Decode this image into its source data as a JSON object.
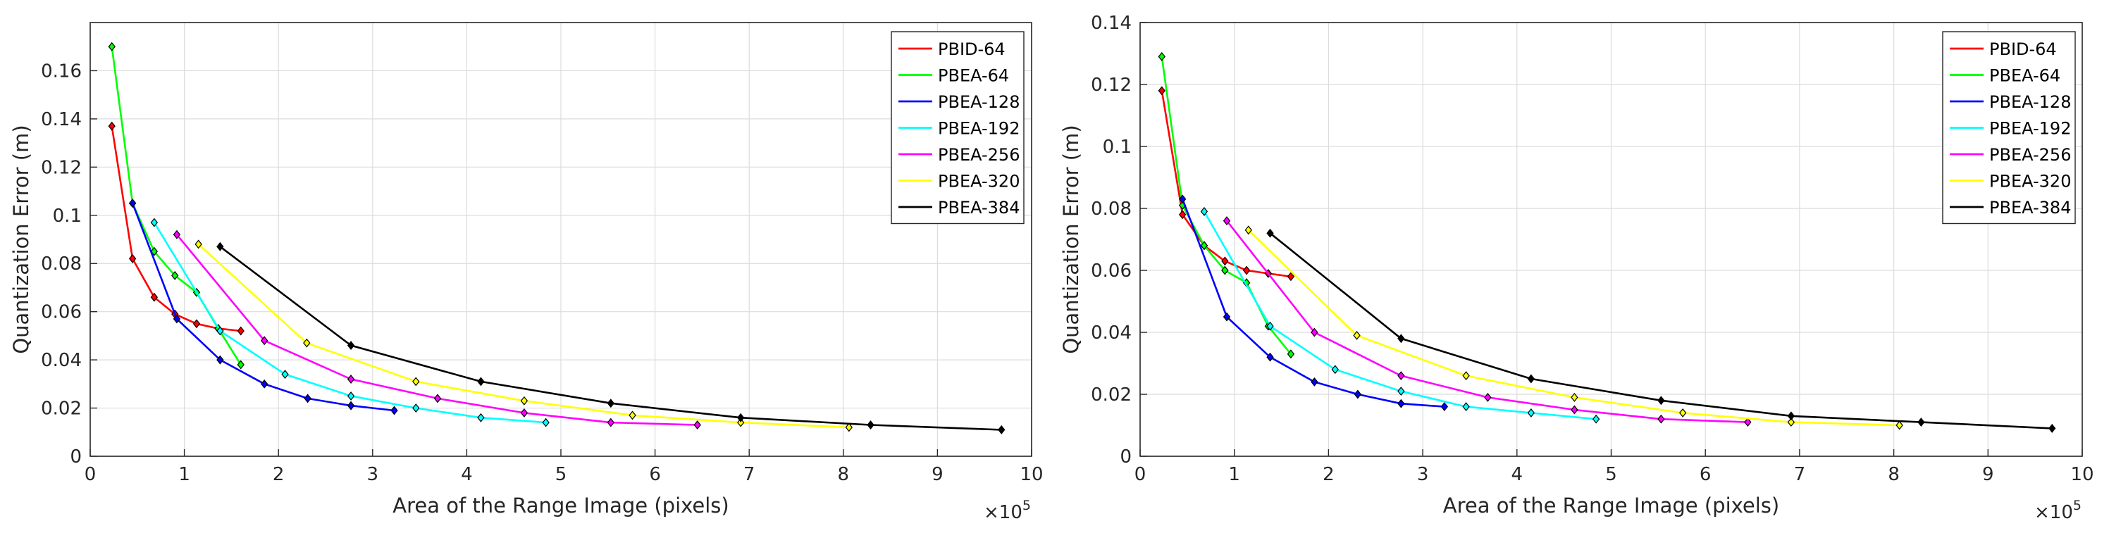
{
  "chart_data": [
    {
      "type": "line",
      "title": "",
      "xlabel": "Area of the Range Image  (pixels)",
      "ylabel": "Quantization Error  (m)",
      "x_multiplier_base": "×10",
      "x_multiplier_exp": "5",
      "xlim": [
        0,
        10
      ],
      "ylim": [
        0,
        0.18
      ],
      "xticks": [
        "0",
        "1",
        "2",
        "3",
        "4",
        "5",
        "6",
        "7",
        "8",
        "9",
        "10"
      ],
      "yticks": [
        "0",
        "0.02",
        "0.04",
        "0.06",
        "0.08",
        "0.1",
        "0.12",
        "0.14",
        "0.16"
      ],
      "grid": true,
      "legend_position": "top-right",
      "series": [
        {
          "name": "PBID-64",
          "color": "#ff0000",
          "x": [
            0.23,
            0.45,
            0.68,
            0.9,
            1.13,
            1.36,
            1.6
          ],
          "y": [
            0.137,
            0.082,
            0.066,
            0.059,
            0.055,
            0.053,
            0.052
          ]
        },
        {
          "name": "PBEA-64",
          "color": "#00ff00",
          "x": [
            0.23,
            0.45,
            0.68,
            0.9,
            1.13,
            1.36,
            1.6
          ],
          "y": [
            0.17,
            0.105,
            0.085,
            0.075,
            0.068,
            0.053,
            0.038
          ]
        },
        {
          "name": "PBEA-128",
          "color": "#0000ff",
          "x": [
            0.45,
            0.92,
            1.38,
            1.85,
            2.31,
            2.77,
            3.23
          ],
          "y": [
            0.105,
            0.057,
            0.04,
            0.03,
            0.024,
            0.021,
            0.019
          ]
        },
        {
          "name": "PBEA-192",
          "color": "#00ffff",
          "x": [
            0.68,
            1.38,
            2.07,
            2.77,
            3.46,
            4.15,
            4.84
          ],
          "y": [
            0.097,
            0.052,
            0.034,
            0.025,
            0.02,
            0.016,
            0.014
          ]
        },
        {
          "name": "PBEA-256",
          "color": "#ff00ff",
          "x": [
            0.92,
            1.85,
            2.77,
            3.69,
            4.61,
            5.53,
            6.45
          ],
          "y": [
            0.092,
            0.048,
            0.032,
            0.024,
            0.018,
            0.014,
            0.013
          ]
        },
        {
          "name": "PBEA-320",
          "color": "#ffff00",
          "x": [
            1.15,
            2.3,
            3.46,
            4.61,
            5.76,
            6.91,
            8.06
          ],
          "y": [
            0.088,
            0.047,
            0.031,
            0.023,
            0.017,
            0.014,
            0.012
          ]
        },
        {
          "name": "PBEA-384",
          "color": "#000000",
          "x": [
            1.38,
            2.77,
            4.15,
            5.53,
            6.91,
            8.29,
            9.68
          ],
          "y": [
            0.087,
            0.046,
            0.031,
            0.022,
            0.016,
            0.013,
            0.011
          ]
        }
      ]
    },
    {
      "type": "line",
      "title": "",
      "xlabel": "Area of the Range Image  (pixels)",
      "ylabel": "Quantization Error  (m)",
      "x_multiplier_base": "×10",
      "x_multiplier_exp": "5",
      "xlim": [
        0,
        10
      ],
      "ylim": [
        0,
        0.14
      ],
      "xticks": [
        "0",
        "1",
        "2",
        "3",
        "4",
        "5",
        "6",
        "7",
        "8",
        "9",
        "10"
      ],
      "yticks": [
        "0",
        "0.02",
        "0.04",
        "0.06",
        "0.08",
        "0.1",
        "0.12",
        "0.14"
      ],
      "grid": true,
      "legend_position": "top-right",
      "series": [
        {
          "name": "PBID-64",
          "color": "#ff0000",
          "x": [
            0.23,
            0.45,
            0.68,
            0.9,
            1.13,
            1.36,
            1.6
          ],
          "y": [
            0.118,
            0.078,
            0.068,
            0.063,
            0.06,
            0.059,
            0.058
          ]
        },
        {
          "name": "PBEA-64",
          "color": "#00ff00",
          "x": [
            0.23,
            0.45,
            0.68,
            0.9,
            1.13,
            1.36,
            1.6
          ],
          "y": [
            0.129,
            0.081,
            0.068,
            0.06,
            0.056,
            0.042,
            0.033
          ]
        },
        {
          "name": "PBEA-128",
          "color": "#0000ff",
          "x": [
            0.45,
            0.92,
            1.38,
            1.85,
            2.31,
            2.77,
            3.23
          ],
          "y": [
            0.083,
            0.045,
            0.032,
            0.024,
            0.02,
            0.017,
            0.016
          ]
        },
        {
          "name": "PBEA-192",
          "color": "#00ffff",
          "x": [
            0.68,
            1.38,
            2.07,
            2.77,
            3.46,
            4.15,
            4.84
          ],
          "y": [
            0.079,
            0.042,
            0.028,
            0.021,
            0.016,
            0.014,
            0.012
          ]
        },
        {
          "name": "PBEA-256",
          "color": "#ff00ff",
          "x": [
            0.92,
            1.85,
            2.77,
            3.69,
            4.61,
            5.53,
            6.45
          ],
          "y": [
            0.076,
            0.04,
            0.026,
            0.019,
            0.015,
            0.012,
            0.011
          ]
        },
        {
          "name": "PBEA-320",
          "color": "#ffff00",
          "x": [
            1.15,
            2.3,
            3.46,
            4.61,
            5.76,
            6.91,
            8.06
          ],
          "y": [
            0.073,
            0.039,
            0.026,
            0.019,
            0.014,
            0.011,
            0.01
          ]
        },
        {
          "name": "PBEA-384",
          "color": "#000000",
          "x": [
            1.38,
            2.77,
            4.15,
            5.53,
            6.91,
            8.29,
            9.68
          ],
          "y": [
            0.072,
            0.038,
            0.025,
            0.018,
            0.013,
            0.011,
            0.009
          ]
        }
      ]
    }
  ]
}
